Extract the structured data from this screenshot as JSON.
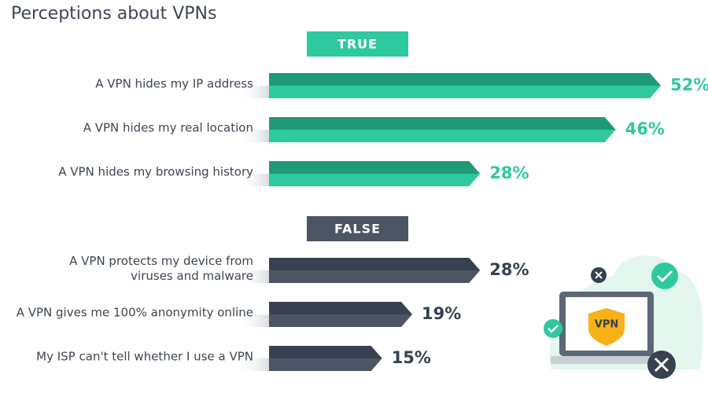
{
  "chart_data": {
    "type": "bar",
    "title": "Perceptions about VPNs",
    "illustration_label": "VPN",
    "groups": [
      {
        "name": "TRUE",
        "color": "#2ec99e",
        "dark_color": "#1f9a78",
        "categories": [
          [
            "A VPN hides my IP address"
          ],
          [
            "A VPN hides my real location"
          ],
          [
            "A VPN hides my browsing history"
          ]
        ],
        "values": [
          52,
          46,
          28
        ],
        "value_labels": [
          "52%",
          "46%",
          "28%"
        ]
      },
      {
        "name": "FALSE",
        "color": "#4b5563",
        "dark_color": "#37414f",
        "categories": [
          [
            "A VPN protects my device from",
            "viruses and malware"
          ],
          [
            "A VPN gives me 100% anonymity online"
          ],
          [
            "My ISP can't tell whether I use a VPN"
          ]
        ],
        "values": [
          28,
          19,
          15
        ],
        "value_labels": [
          "28%",
          "19%",
          "15%"
        ]
      }
    ]
  }
}
